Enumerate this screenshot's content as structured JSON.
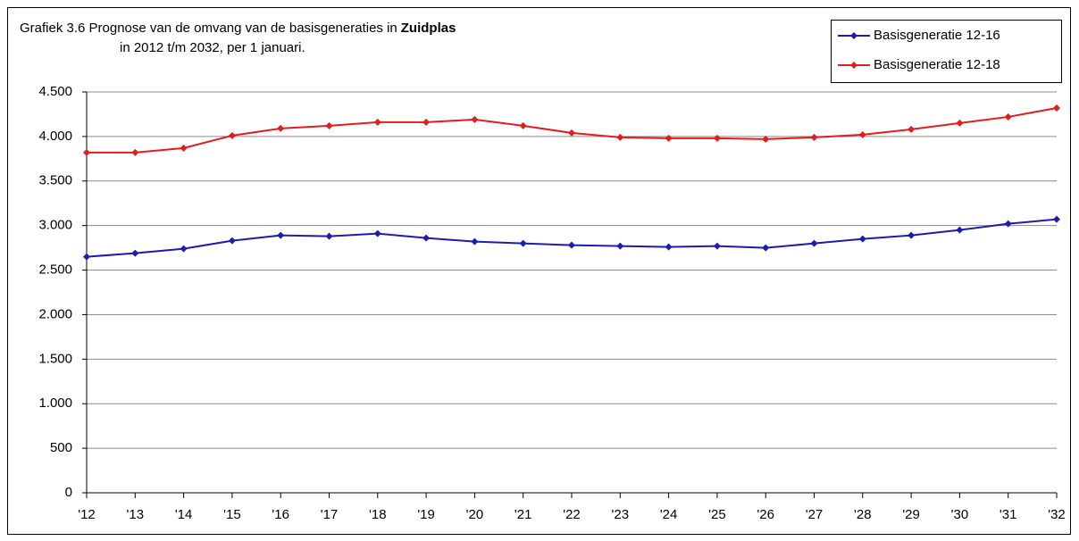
{
  "chart_data": {
    "type": "line",
    "title": "Grafiek 3.6 Prognose van de omvang van de basisgeneraties in",
    "title_emphasis": "Zuidplas",
    "subtitle": "in 2012 t/m 2032, per 1 januari.",
    "categories": [
      "'12",
      "'13",
      "'14",
      "'15",
      "'16",
      "'17",
      "'18",
      "'19",
      "'20",
      "'21",
      "'22",
      "'23",
      "'24",
      "'25",
      "'26",
      "'27",
      "'28",
      "'29",
      "'30",
      "'31",
      "'32"
    ],
    "series": [
      {
        "name": "Basisgeneratie 12-16",
        "color": "#1c1cb4",
        "values": [
          2650,
          2690,
          2740,
          2830,
          2890,
          2880,
          2910,
          2860,
          2820,
          2800,
          2780,
          2770,
          2760,
          2770,
          2750,
          2800,
          2850,
          2890,
          2950,
          3020,
          3070
        ]
      },
      {
        "name": "Basisgeneratie 12-18",
        "color": "#e41c1c",
        "values": [
          3820,
          3820,
          3870,
          4010,
          4090,
          4120,
          4160,
          4160,
          4190,
          4120,
          4040,
          3990,
          3980,
          3980,
          3970,
          3990,
          4020,
          4080,
          4150,
          4220,
          4320
        ]
      }
    ],
    "ylim": [
      0,
      4500
    ],
    "yticks": [
      0,
      500,
      {
        "value": 1000,
        "label": "1.000"
      },
      {
        "value": 1500,
        "label": "1.500"
      },
      {
        "value": 2000,
        "label": "2.000"
      },
      {
        "value": 2500,
        "label": "2.500"
      },
      {
        "value": 3000,
        "label": "3.000"
      },
      {
        "value": 3500,
        "label": "3.500"
      },
      {
        "value": 4000,
        "label": "4.000"
      },
      {
        "value": 4500,
        "label": "4.500"
      }
    ],
    "grid": true,
    "legend": "top-right"
  }
}
